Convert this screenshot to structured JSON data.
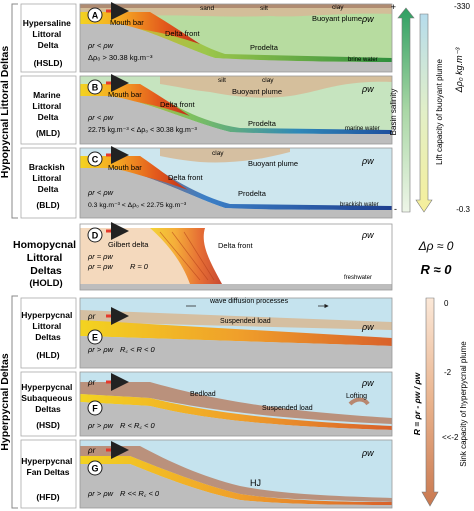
{
  "groups": {
    "hypopycnal": "Hypopycnal Littoral Deltas",
    "hyperpycnal": "Hyperpycnal Deltas"
  },
  "panels": [
    {
      "letter": "A",
      "name_lines": [
        "Hypersaline",
        "Littoral",
        "Delta"
      ],
      "abbr": "(HSLD)",
      "labels": {
        "mouth_bar": "Mouth bar",
        "sand": "sand",
        "silt": "silt",
        "clay": "clay",
        "plume": "Buoyant plume",
        "front": "Delta front",
        "prodelta": "Prodelta",
        "water": "brine water"
      },
      "cond1": "ρr < ρw",
      "cond2": "Δρ₀ > 30.38 kg.m⁻³",
      "colors": {
        "water": "#b7dca0"
      }
    },
    {
      "letter": "B",
      "name_lines": [
        "Marine",
        "Littoral",
        "Delta"
      ],
      "abbr": "(MLD)",
      "labels": {
        "mouth_bar": "Mouth bar",
        "silt": "silt",
        "clay": "clay",
        "plume": "Buoyant plume",
        "front": "Delta front",
        "prodelta": "Prodelta",
        "water": "marine water"
      },
      "cond1": "ρr < ρw",
      "cond2": "22.75 kg.m⁻³ < Δρ₀ < 30.38 kg.m⁻³",
      "colors": {
        "water": "#c6e4bf"
      }
    },
    {
      "letter": "C",
      "name_lines": [
        "Brackish",
        "Littoral",
        "Delta"
      ],
      "abbr": "(BLD)",
      "labels": {
        "mouth_bar": "Mouth bar",
        "clay": "clay",
        "plume": "Buoyant plume",
        "front": "Delta front",
        "prodelta": "Prodelta",
        "water": "brackish water"
      },
      "cond1": "ρr < ρw",
      "cond2": "0.3 kg.m⁻³ < Δρ₀ < 22.75 kg.m⁻³",
      "colors": {
        "water": "#cde6ee"
      }
    },
    {
      "letter": "D",
      "name_lines": [
        "Homopycnal",
        "Littoral",
        "Deltas"
      ],
      "abbr": "(HOLD)",
      "labels": {
        "gilbert": "Gilbert delta",
        "front": "Delta front",
        "water": "freshwater"
      },
      "cond1": "ρr ≈ ρw",
      "cond2": "ρr ≈ ρw",
      "cond3": "R ≈ 0",
      "colors": {
        "water": "#ffffff"
      }
    },
    {
      "letter": "E",
      "name_lines": [
        "Hyperpycnal",
        "Littoral",
        "Deltas"
      ],
      "abbr": "(HLD)",
      "labels": {
        "wave": "wave diffusion processes",
        "suspended": "Suspended load"
      },
      "cond1": "ρr > ρw",
      "cond2": "R꜀ < R < 0",
      "colors": {
        "water": "#c5e3ee"
      }
    },
    {
      "letter": "F",
      "name_lines": [
        "Hyperpycnal",
        "Subaqueous",
        "Deltas"
      ],
      "abbr": "(HSD)",
      "labels": {
        "bedload": "Bedload",
        "suspended": "Suspended load",
        "lofting": "Lofting"
      },
      "cond1": "ρr > ρw",
      "cond2": "R < R꜀ < 0",
      "colors": {
        "water": "#c5e3ee"
      }
    },
    {
      "letter": "G",
      "name_lines": [
        "Hyperpycnal",
        "Fan Deltas"
      ],
      "abbr": "(HFD)",
      "labels": {
        "hj": "HJ"
      },
      "cond1": "ρr > ρw",
      "cond2": "R << R꜀ < 0",
      "colors": {
        "water": "#c5e3ee"
      }
    }
  ],
  "right": {
    "plus": "+",
    "minus": "-",
    "salinity": "Basin salinity",
    "lift": "Lift capacity of buoyant plume",
    "delta_rho_label": "Δρ₀ kg.m⁻³",
    "top_value": "-330",
    "bottom_value": "-0.3",
    "homo_delta": "Δρ ≈ 0",
    "homo_r": "R ≈ 0",
    "sink": "Sink capacity of hyperpycnal plume",
    "r_formula": "R = ρr - ρw / ρw",
    "zero": "0",
    "minus2": "-2",
    "lt_minus2": "<<-2"
  },
  "colors": {
    "river_arrow": "#e53a2c",
    "sediment_bed": "#d6ba98",
    "sediment_dark": "#9a6a58",
    "floor": "#bdbdbd",
    "salinity_top": "#2f9f62",
    "lift_bottom": "#f6ef9a"
  }
}
